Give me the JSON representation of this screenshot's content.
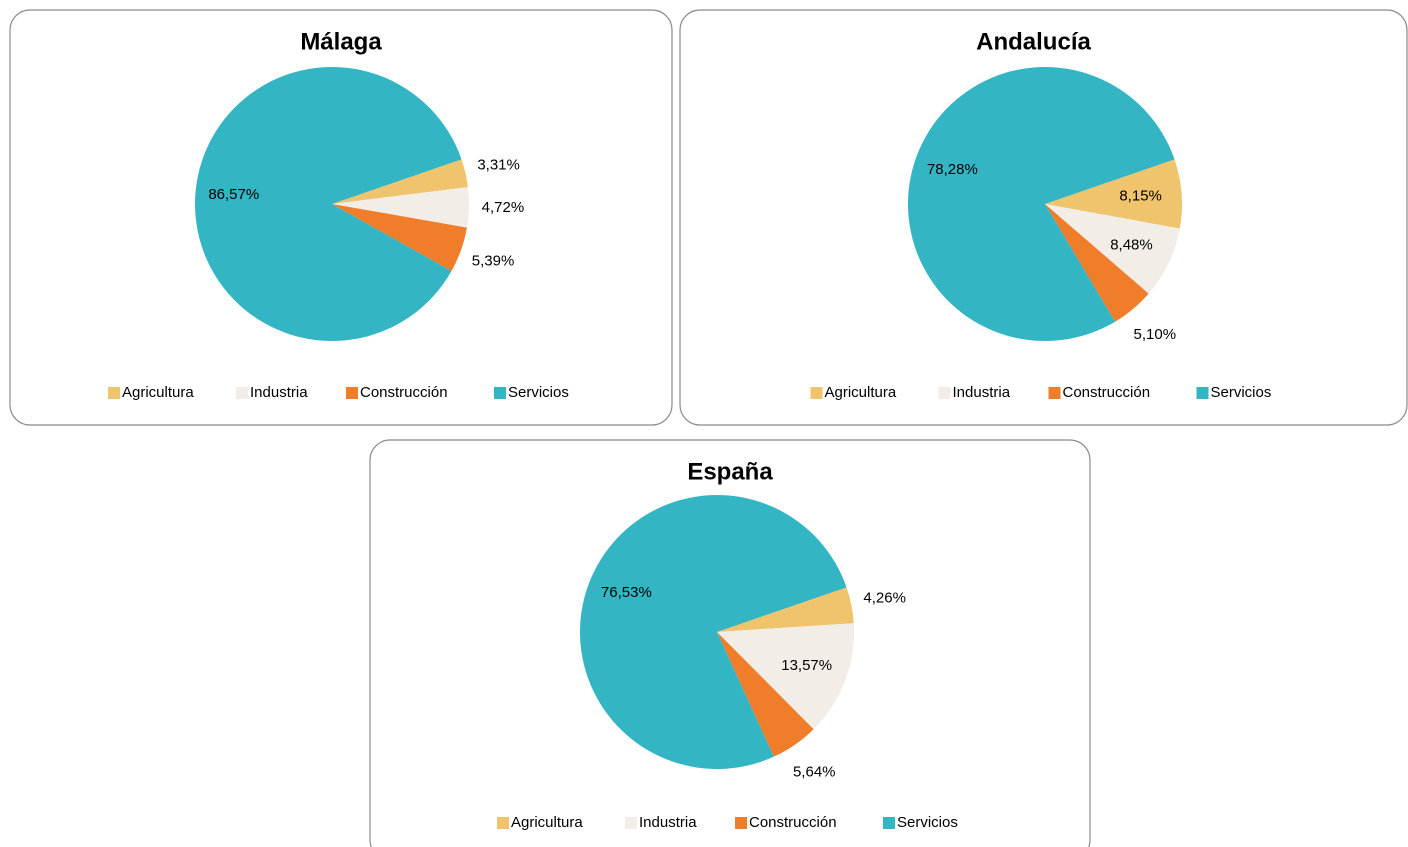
{
  "chart_data": [
    {
      "type": "pie",
      "title": "Málaga",
      "categories": [
        "Agricultura",
        "Industria",
        "Construcción",
        "Servicios"
      ],
      "values": [
        3.31,
        4.72,
        5.39,
        86.57
      ],
      "value_labels": [
        "3,31%",
        "4,72%",
        "5,39%",
        "86,57%"
      ],
      "colors": [
        "#f0c36d",
        "#f2ede6",
        "#ef7d2a",
        "#33b5c4"
      ],
      "legend": "bottom"
    },
    {
      "type": "pie",
      "title": "Andalucía",
      "categories": [
        "Agricultura",
        "Industria",
        "Construcción",
        "Servicios"
      ],
      "values": [
        8.15,
        8.48,
        5.1,
        78.28
      ],
      "value_labels": [
        "8,15%",
        "8,48%",
        "5,10%",
        "78,28%"
      ],
      "colors": [
        "#f0c36d",
        "#f2ede6",
        "#ef7d2a",
        "#33b5c4"
      ],
      "legend": "bottom"
    },
    {
      "type": "pie",
      "title": "España",
      "categories": [
        "Agricultura",
        "Industria",
        "Construcción",
        "Servicios"
      ],
      "values": [
        4.26,
        13.57,
        5.64,
        76.53
      ],
      "value_labels": [
        "4,26%",
        "13,57%",
        "5,64%",
        "76,53%"
      ],
      "colors": [
        "#f0c36d",
        "#f2ede6",
        "#ef7d2a",
        "#33b5c4"
      ],
      "legend": "bottom"
    }
  ]
}
